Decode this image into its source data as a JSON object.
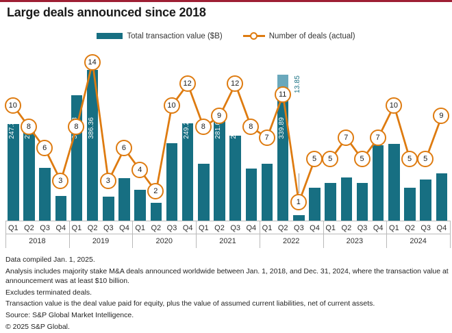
{
  "page": {
    "top_rule_color": "#9e1f34"
  },
  "header": {
    "title": "Large deals announced since 2018"
  },
  "legend": {
    "items": [
      {
        "label": "Total transaction value ($B)",
        "swatch": "bar-swatch",
        "color": "#176f82"
      },
      {
        "label": "Number of deals (actual)",
        "swatch": "line-circle-swatch",
        "color": "#de7b10"
      }
    ]
  },
  "chart_data": {
    "type": "bar",
    "title": "Large deals announced since 2018",
    "categories": [
      "2018 Q1",
      "2018 Q2",
      "2018 Q3",
      "2018 Q4",
      "2019 Q1",
      "2019 Q2",
      "2019 Q3",
      "2019 Q4",
      "2020 Q1",
      "2020 Q2",
      "2020 Q3",
      "2020 Q4",
      "2021 Q1",
      "2021 Q2",
      "2021 Q3",
      "2021 Q4",
      "2022 Q1",
      "2022 Q2",
      "2022 Q3",
      "2022 Q4",
      "2023 Q1",
      "2023 Q2",
      "2023 Q3",
      "2023 Q4",
      "2024 Q1",
      "2024 Q2",
      "2024 Q3",
      "2024 Q4"
    ],
    "years": [
      {
        "label": "2018",
        "quarters": [
          "Q1",
          "Q2",
          "Q3",
          "Q4"
        ]
      },
      {
        "label": "2019",
        "quarters": [
          "Q1",
          "Q2",
          "Q3",
          "Q4"
        ]
      },
      {
        "label": "2020",
        "quarters": [
          "Q1",
          "Q2",
          "Q3",
          "Q4"
        ]
      },
      {
        "label": "2021",
        "quarters": [
          "Q1",
          "Q2",
          "Q3",
          "Q4"
        ]
      },
      {
        "label": "2022",
        "quarters": [
          "Q1",
          "Q2",
          "Q3",
          "Q4"
        ]
      },
      {
        "label": "2023",
        "quarters": [
          "Q1",
          "Q2",
          "Q3",
          "Q4"
        ]
      },
      {
        "label": "2024",
        "quarters": [
          "Q1",
          "Q2",
          "Q3",
          "Q4"
        ]
      }
    ],
    "series": [
      {
        "name": "Total transaction value ($B)",
        "type": "bar",
        "color": "#176f82",
        "values": [
          247.33,
          231.4,
          135.7,
          63.89,
          321.98,
          386.36,
          61.06,
          109.32,
          79.8,
          45.23,
          198.06,
          249.26,
          146.03,
          281.09,
          217.2,
          132.84,
          146.67,
          339.89,
          13.85,
          84.3,
          95.8,
          110.17,
          96.8,
          193.11,
          196.53,
          84.63,
          104.79,
          122.05
        ],
        "value_labels": [
          "247.33",
          "231.40",
          "135.70",
          "63.89",
          "321.98",
          "386.36",
          "61.06",
          "109.32",
          "79.80",
          "45.23",
          "198.06",
          "249.26",
          "146.03",
          "281.09",
          "217.20",
          "132.84",
          "146.67",
          "339.89",
          "13.85",
          "84.30",
          "95.80",
          "110.17",
          "96.80",
          "193.11",
          "196.53",
          "84.63",
          "104.79",
          "122.05"
        ]
      },
      {
        "name": "Number of deals (actual)",
        "type": "line",
        "color": "#de7b10",
        "marker": "open-circle-with-value",
        "values": [
          10,
          8,
          6,
          3,
          8,
          14,
          3,
          6,
          4,
          2,
          10,
          12,
          8,
          9,
          12,
          8,
          7,
          11,
          1,
          5,
          5,
          7,
          5,
          7,
          10,
          5,
          5,
          9
        ]
      }
    ],
    "legend_position": "top",
    "value_axis": "hidden (bars labeled directly)",
    "deals_axis_range": [
      0,
      14
    ],
    "display_hints": {
      "value_label_above_bar_index": 18,
      "lighter_cap_on_bar_index": 17,
      "cap_color": "#6aa8bc"
    }
  },
  "footer": {
    "lines": [
      "Data compiled Jan. 1, 2025.",
      "Analysis includes majority stake M&A deals announced worldwide between Jan. 1, 2018, and Dec. 31, 2024, where the transaction value at announcement was at least $10 billion.",
      "Excludes terminated deals.",
      "Transaction value is the deal value paid for equity, plus the value of assumed current liabilities, net of current assets.",
      "Source: S&P Global Market Intelligence.",
      "© 2025 S&P Global."
    ]
  }
}
